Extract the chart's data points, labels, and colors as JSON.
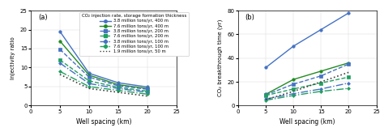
{
  "x": [
    5,
    10,
    15,
    20
  ],
  "panel_a": {
    "title": "(a)",
    "xlabel": "Well spacing (km)",
    "ylabel": "Injectivity ratio",
    "xlim": [
      0,
      25
    ],
    "ylim": [
      0,
      25
    ],
    "yticks": [
      0,
      5,
      10,
      15,
      20,
      25
    ],
    "series": [
      {
        "label": "3.8 million tons/yr, 400 m",
        "color": "#4472C4",
        "linestyle": "-",
        "marker": "o",
        "markersize": 2.5,
        "lw": 1.0,
        "y": [
          19.5,
          8.5,
          6.0,
          4.9
        ]
      },
      {
        "label": "7.6 million tons/yr, 400 m",
        "color": "#228B22",
        "linestyle": "-",
        "marker": "o",
        "markersize": 2.5,
        "lw": 1.0,
        "y": [
          17.0,
          8.0,
          5.5,
          4.5
        ]
      },
      {
        "label": "3.8 million tons/yr, 200 m",
        "color": "#4472C4",
        "linestyle": "--",
        "marker": "s",
        "markersize": 2.5,
        "lw": 1.0,
        "y": [
          14.8,
          7.5,
          5.2,
          4.3
        ]
      },
      {
        "label": "7.6 million tons/yr, 200 m",
        "color": "#20a060",
        "linestyle": "--",
        "marker": "s",
        "markersize": 2.5,
        "lw": 1.0,
        "y": [
          12.0,
          6.5,
          4.8,
          3.8
        ]
      },
      {
        "label": "3.8 million tons/yr, 100 m",
        "color": "#4472C4",
        "linestyle": "-.",
        "marker": "D",
        "markersize": 2.0,
        "lw": 1.0,
        "y": [
          11.2,
          5.8,
          4.5,
          3.5
        ]
      },
      {
        "label": "7.6 million tons/yr, 100 m",
        "color": "#20a060",
        "linestyle": "-.",
        "marker": "D",
        "markersize": 2.0,
        "lw": 1.0,
        "y": [
          9.0,
          5.0,
          4.0,
          3.0
        ]
      },
      {
        "label": "1.9 million tons/yr, 50 m",
        "color": "#404040",
        "linestyle": ":",
        "marker": null,
        "markersize": 0,
        "lw": 1.2,
        "y": [
          8.2,
          4.5,
          3.5,
          2.5
        ]
      }
    ]
  },
  "panel_b": {
    "title": "(b)",
    "xlabel": "Well spacing (km)",
    "ylabel": "CO₂ breakthrough time (yr)",
    "xlim": [
      0,
      25
    ],
    "ylim": [
      0,
      80
    ],
    "yticks": [
      0,
      20,
      40,
      60,
      80
    ],
    "series": [
      {
        "label": "3.8 million tons/yr, 400 m",
        "color": "#4472C4",
        "linestyle": "-",
        "marker": "o",
        "markersize": 2.5,
        "lw": 1.0,
        "y": [
          32.0,
          50.0,
          64.0,
          78.0
        ]
      },
      {
        "label": "7.6 million tons/yr, 400 m",
        "color": "#228B22",
        "linestyle": "-",
        "marker": "o",
        "markersize": 2.5,
        "lw": 1.0,
        "y": [
          9.5,
          22.0,
          29.0,
          36.0
        ]
      },
      {
        "label": "3.8 million tons/yr, 200 m",
        "color": "#4472C4",
        "linestyle": "--",
        "marker": "s",
        "markersize": 2.5,
        "lw": 1.0,
        "y": [
          9.0,
          18.0,
          25.0,
          35.0
        ]
      },
      {
        "label": "7.6 million tons/yr, 200 m",
        "color": "#20a060",
        "linestyle": "--",
        "marker": "s",
        "markersize": 2.5,
        "lw": 1.0,
        "y": [
          8.5,
          14.0,
          19.0,
          24.0
        ]
      },
      {
        "label": "3.8 million tons/yr, 100 m",
        "color": "#4472C4",
        "linestyle": "-.",
        "marker": "D",
        "markersize": 2.0,
        "lw": 1.0,
        "y": [
          5.5,
          10.0,
          14.0,
          19.0
        ]
      },
      {
        "label": "7.6 million tons/yr, 100 m",
        "color": "#20a060",
        "linestyle": "-.",
        "marker": "D",
        "markersize": 2.0,
        "lw": 1.0,
        "y": [
          4.5,
          8.5,
          12.0,
          14.5
        ]
      },
      {
        "label": "1.9 million tons/yr, 50 m",
        "color": "#404040",
        "linestyle": ":",
        "marker": null,
        "markersize": 0,
        "lw": 1.2,
        "y": [
          5.0,
          12.0,
          20.0,
          28.0
        ]
      }
    ]
  },
  "legend_title": "CO₂ injection rate, storage formation thickness"
}
